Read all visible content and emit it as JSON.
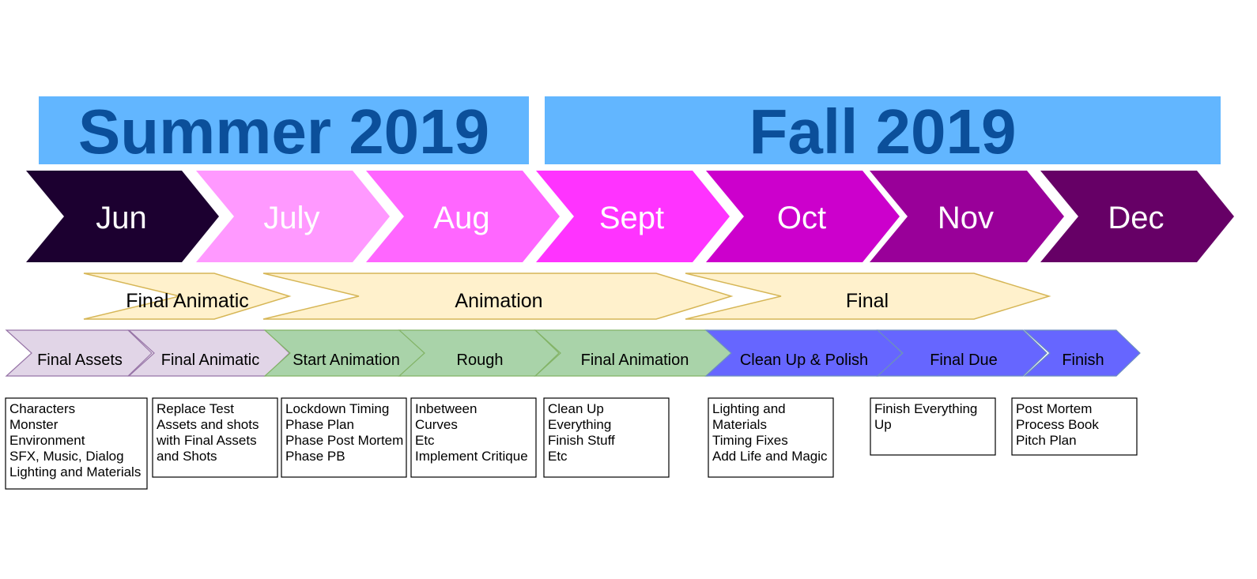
{
  "seasons": [
    {
      "label": "Summer 2019",
      "color": "#62b6ff"
    },
    {
      "label": "Fall 2019",
      "color": "#62b6ff"
    }
  ],
  "months": [
    {
      "label": "Jun",
      "color": "#1c0030"
    },
    {
      "label": "July",
      "color": "#ff99ff"
    },
    {
      "label": "Aug",
      "color": "#ff66ff"
    },
    {
      "label": "Sept",
      "color": "#ff33ff"
    },
    {
      "label": "Oct",
      "color": "#cc00cc"
    },
    {
      "label": "Nov",
      "color": "#990099"
    },
    {
      "label": "Dec",
      "color": "#660066"
    }
  ],
  "phases": [
    {
      "label": "Final Animatic"
    },
    {
      "label": "Animation"
    },
    {
      "label": "Final"
    }
  ],
  "stages": [
    {
      "label": "Final Assets",
      "color": "#e1d5e7"
    },
    {
      "label": "Final Animatic",
      "color": "#e1d5e7"
    },
    {
      "label": "Start Animation",
      "color": "#a9d3a9"
    },
    {
      "label": "Rough",
      "color": "#a9d3a9"
    },
    {
      "label": "Final Animation",
      "color": "#a9d3a9"
    },
    {
      "label": "Clean Up & Polish",
      "color": "#6666ff"
    },
    {
      "label": "Final Due",
      "color": "#6666ff"
    },
    {
      "label": "Finish",
      "color": "#6666ff"
    }
  ],
  "notes": [
    {
      "lines": [
        "Characters",
        "Monster",
        "Environment",
        "SFX, Music, Dialog",
        "Lighting and Materials"
      ]
    },
    {
      "lines": [
        "Replace Test",
        "Assets and shots",
        "with Final Assets",
        "and Shots"
      ]
    },
    {
      "lines": [
        "Lockdown Timing",
        "Phase Plan",
        "Phase Post Mortem",
        "Phase PB"
      ]
    },
    {
      "lines": [
        "Inbetween",
        "Curves",
        "Etc",
        "Implement Critique"
      ]
    },
    {
      "lines": [
        "Clean Up",
        "Everything",
        "Finish Stuff",
        "Etc"
      ]
    },
    {
      "lines": [
        "Lighting and",
        "Materials",
        "Timing Fixes",
        "Add Life and Magic"
      ]
    },
    {
      "lines": [
        "Finish Everything",
        "Up"
      ]
    },
    {
      "lines": [
        "Post Mortem",
        "Process Book",
        "Pitch Plan"
      ]
    }
  ],
  "colors": {
    "phase_fill": "#fff1cc",
    "phase_stroke": "#d6b656",
    "stage_stroke_purple": "#9673a6",
    "stage_stroke_green": "#82b366",
    "stage_stroke_blue": "#6c8ebf",
    "season_text": "#0b4f9a"
  }
}
